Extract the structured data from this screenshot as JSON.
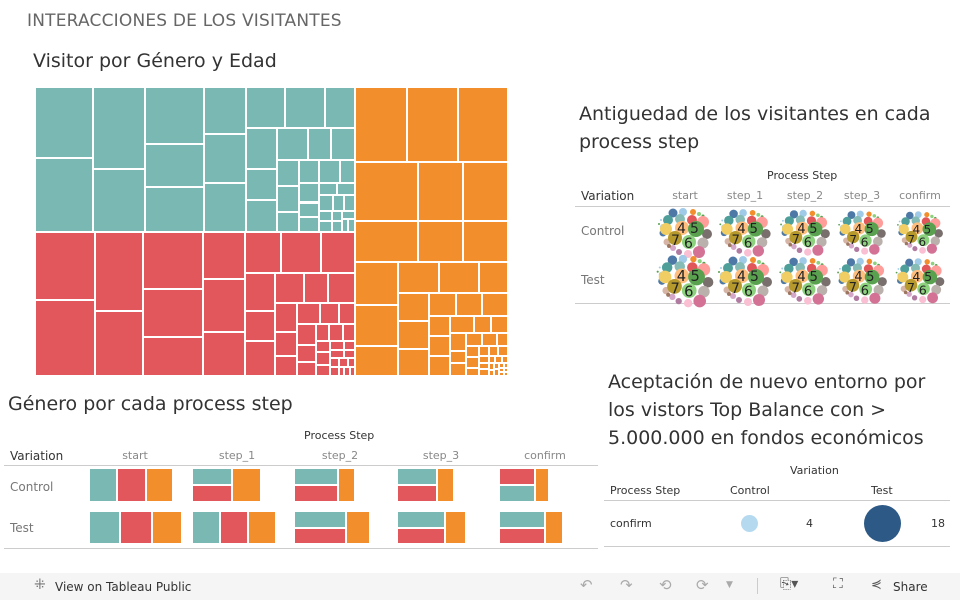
{
  "dashboard_title": "INTERACCIONES DE LOS VISITANTES",
  "treemap": {
    "title": "Visitor por Género y Edad",
    "colors": {
      "teal": "#79b8b3",
      "red": "#e1575b",
      "orange": "#f28e2c"
    }
  },
  "bubbles": {
    "title_line1": "Antiguedad de los visitantes en cada",
    "title_line2": "process step",
    "column_header": "Process Step",
    "row_header": "Variation",
    "columns": [
      "start",
      "step_1",
      "step_2",
      "step_3",
      "confirm"
    ],
    "rows": [
      "Control",
      "Test"
    ],
    "labels": [
      "4",
      "5",
      "7",
      "6"
    ]
  },
  "gender": {
    "title": "Género por cada process step",
    "column_header": "Process Step",
    "row_header": "Variation",
    "columns": [
      "start",
      "step_1",
      "step_2",
      "step_3",
      "confirm"
    ],
    "rows": [
      "Control",
      "Test"
    ],
    "cells": [
      [
        {
          "type": "row",
          "values": [
            [
              "teal",
              28
            ],
            [
              "red",
              29
            ],
            [
              "orange",
              27
            ]
          ]
        },
        {
          "type": "stack",
          "top": [
            "teal",
            20
          ],
          "bottom": [
            "red",
            20
          ],
          "side": [
            "orange",
            29
          ]
        },
        {
          "type": "stack",
          "top": [
            "teal",
            22
          ],
          "bottom": [
            "red",
            22
          ],
          "side": [
            "orange",
            17
          ]
        },
        {
          "type": "stack",
          "top": [
            "teal",
            20
          ],
          "bottom": [
            "red",
            20
          ],
          "side": [
            "orange",
            17
          ]
        },
        {
          "type": "stack",
          "top": [
            "red",
            18
          ],
          "bottom": [
            "teal",
            18
          ],
          "side": [
            "orange",
            14
          ]
        }
      ],
      [
        {
          "type": "row",
          "values": [
            [
              "teal",
              31
            ],
            [
              "red",
              32
            ],
            [
              "orange",
              30
            ]
          ]
        },
        {
          "type": "row",
          "values": [
            [
              "teal",
              28
            ],
            [
              "red",
              28
            ],
            [
              "orange",
              28
            ]
          ]
        },
        {
          "type": "stack",
          "top": [
            "teal",
            26
          ],
          "bottom": [
            "red",
            26
          ],
          "side": [
            "orange",
            24
          ]
        },
        {
          "type": "stack",
          "top": [
            "teal",
            24
          ],
          "bottom": [
            "red",
            24
          ],
          "side": [
            "orange",
            21
          ]
        },
        {
          "type": "stack",
          "top": [
            "teal",
            23
          ],
          "bottom": [
            "red",
            23
          ],
          "side": [
            "orange",
            18
          ]
        }
      ]
    ]
  },
  "acceptance": {
    "title_line1": "Aceptación de nuevo entorno por",
    "title_line2": "los vistors Top Balance con >",
    "title_line3": "5.000.000 en fondos económicos",
    "column_header": "Variation",
    "row_header": "Process Step",
    "columns": [
      "Control",
      "Test"
    ],
    "row_label": "confirm",
    "values": [
      4,
      18
    ],
    "colors": [
      "#b5daf0",
      "#2c5985"
    ]
  },
  "footer": {
    "view_label": "View on Tableau Public",
    "share_label": "Share"
  }
}
